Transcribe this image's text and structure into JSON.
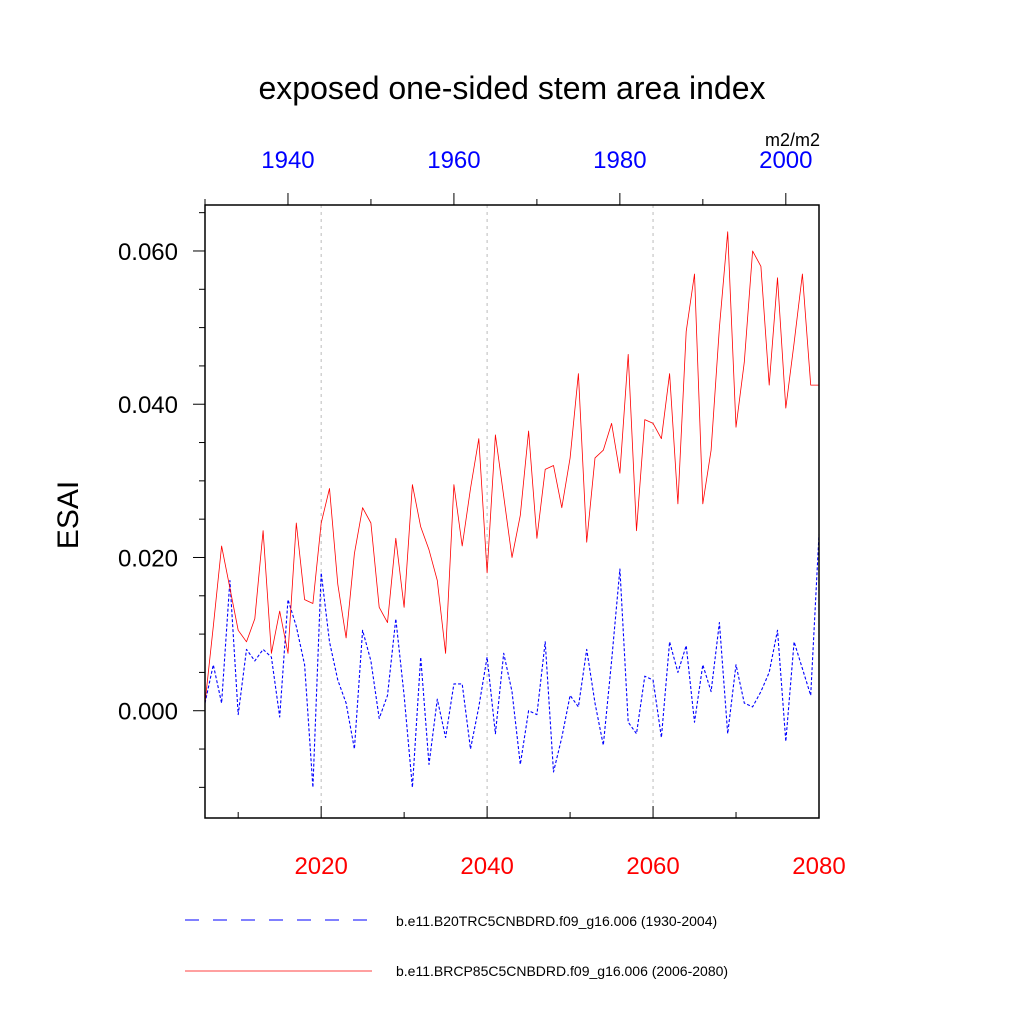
{
  "chart_data": {
    "type": "line",
    "title": "exposed one-sided stem area index",
    "units": "m2/m2",
    "ylabel": "ESAI",
    "xlabel": "",
    "ylim": [
      -0.014,
      0.066
    ],
    "yticks": [
      0.0,
      0.02,
      0.04,
      0.06
    ],
    "ytick_labels": [
      "0.000",
      "0.020",
      "0.040",
      "0.060"
    ],
    "y_minor_step": 0.005,
    "grid": "dotted vertical lines at bottom-axis major ticks",
    "legend_position": "bottom",
    "bottom_axis": {
      "color": "#ff0000",
      "range": [
        2006,
        2080
      ],
      "ticks": [
        2020,
        2040,
        2060,
        2080
      ],
      "tick_labels": [
        "2020",
        "2040",
        "2060",
        "2080"
      ]
    },
    "top_axis": {
      "color": "#0000ff",
      "range": [
        1930,
        2004
      ],
      "ticks": [
        1940,
        1960,
        1980,
        2000
      ],
      "tick_labels": [
        "1940",
        "1960",
        "1980",
        "2000"
      ]
    },
    "series": [
      {
        "name": "b.e11.B20TRC5CNBDRD.f09_g16.006 (1930-2004)",
        "axis": "top",
        "color": "#0000ff",
        "style": "dashed",
        "x_start": 1930,
        "values": [
          0.001,
          0.006,
          0.001,
          0.017,
          -0.0005,
          0.008,
          0.0065,
          0.008,
          0.007,
          -0.0008,
          0.0145,
          0.011,
          0.006,
          -0.01,
          0.018,
          0.009,
          0.004,
          0.001,
          -0.005,
          0.0105,
          0.0065,
          -0.001,
          0.002,
          0.012,
          0.002,
          -0.01,
          0.007,
          -0.007,
          0.0015,
          -0.0035,
          0.0035,
          0.0035,
          -0.005,
          0.0005,
          0.007,
          -0.003,
          0.0075,
          0.0025,
          -0.007,
          0.0,
          -0.0005,
          0.009,
          -0.008,
          -0.0035,
          0.002,
          0.0005,
          0.008,
          0.001,
          -0.0045,
          0.0065,
          0.0185,
          -0.0015,
          -0.003,
          0.0045,
          0.004,
          -0.0035,
          0.009,
          0.005,
          0.0085,
          -0.0015,
          0.006,
          0.0025,
          0.0115,
          -0.003,
          0.006,
          0.001,
          0.0005,
          0.0025,
          0.005,
          0.0105,
          -0.004,
          0.009,
          0.0055,
          0.002,
          0.023
        ]
      },
      {
        "name": "b.e11.BRCP85C5CNBDRD.f09_g16.006 (2006-2080)",
        "axis": "bottom",
        "color": "#ff0000",
        "style": "solid",
        "x_start": 2006,
        "values": [
          0.001,
          0.011,
          0.0215,
          0.016,
          0.0105,
          0.009,
          0.012,
          0.0235,
          0.0075,
          0.013,
          0.0075,
          0.0245,
          0.0145,
          0.014,
          0.0245,
          0.029,
          0.0165,
          0.0095,
          0.0205,
          0.0265,
          0.0245,
          0.0135,
          0.0115,
          0.0225,
          0.0135,
          0.0295,
          0.024,
          0.021,
          0.017,
          0.0075,
          0.0295,
          0.0215,
          0.029,
          0.0355,
          0.018,
          0.036,
          0.028,
          0.02,
          0.0255,
          0.0365,
          0.0225,
          0.0315,
          0.032,
          0.0265,
          0.033,
          0.044,
          0.022,
          0.033,
          0.034,
          0.0375,
          0.031,
          0.0465,
          0.0235,
          0.038,
          0.0375,
          0.0355,
          0.044,
          0.027,
          0.0495,
          0.057,
          0.027,
          0.034,
          0.05,
          0.0625,
          0.037,
          0.0455,
          0.06,
          0.058,
          0.0425,
          0.0565,
          0.0395,
          0.048,
          0.057,
          0.0425,
          0.0425
        ]
      }
    ]
  }
}
